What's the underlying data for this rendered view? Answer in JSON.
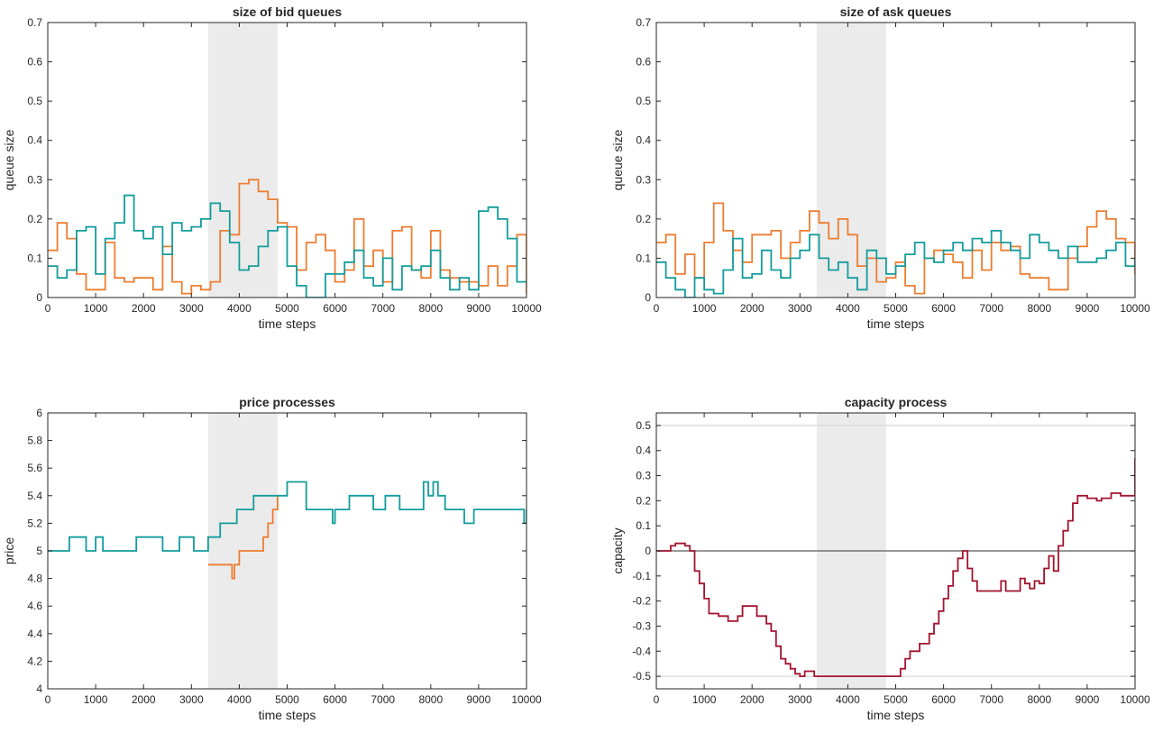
{
  "figure": {
    "colors": {
      "orange": "#ED7D31",
      "teal": "#139C9C",
      "darkred": "#A2142F",
      "shade": "#EBEBEB",
      "axis": "#262626",
      "zero_line": "#595959",
      "bound_line": "#D9D9D9"
    }
  },
  "chart_data": [
    {
      "id": "bid",
      "type": "line",
      "style": "stairs",
      "title": "size of bid queues",
      "xlabel": "time steps",
      "ylabel": "queue size",
      "xlim": [
        0,
        10000
      ],
      "ylim": [
        0,
        0.7
      ],
      "xticks": [
        "0",
        "1000",
        "2000",
        "3000",
        "4000",
        "5000",
        "6000",
        "7000",
        "8000",
        "9000",
        "10000"
      ],
      "yticks": [
        "0",
        "0.1",
        "0.2",
        "0.3",
        "0.4",
        "0.5",
        "0.6",
        "0.7"
      ],
      "grid": false,
      "shaded_region": [
        3350,
        4800
      ],
      "series": [
        {
          "color": "#ED7D31",
          "x": [
            0,
            200,
            400,
            600,
            800,
            1000,
            1200,
            1400,
            1600,
            1800,
            2000,
            2200,
            2400,
            2600,
            2800,
            3000,
            3200,
            3400,
            3600,
            3800,
            4000,
            4200,
            4400,
            4600,
            4800,
            5000,
            5200,
            5400,
            5600,
            5800,
            6000,
            6200,
            6400,
            6600,
            6800,
            7000,
            7200,
            7400,
            7600,
            7800,
            8000,
            8200,
            8400,
            8600,
            8800,
            9000,
            9200,
            9400,
            9600,
            9800,
            10000
          ],
          "y": [
            0.12,
            0.19,
            0.15,
            0.06,
            0.02,
            0.02,
            0.14,
            0.05,
            0.04,
            0.05,
            0.05,
            0.02,
            0.13,
            0.04,
            0.01,
            0.03,
            0.02,
            0.04,
            0.17,
            0.16,
            0.29,
            0.3,
            0.27,
            0.25,
            0.19,
            0.18,
            0.07,
            0.14,
            0.16,
            0.12,
            0.04,
            0.07,
            0.2,
            0.08,
            0.12,
            0.04,
            0.17,
            0.18,
            0.07,
            0.05,
            0.17,
            0.07,
            0.05,
            0.04,
            0.04,
            0.03,
            0.08,
            0.03,
            0.08,
            0.16,
            0.01
          ]
        },
        {
          "color": "#139C9C",
          "x": [
            0,
            200,
            400,
            600,
            800,
            1000,
            1200,
            1400,
            1600,
            1800,
            2000,
            2200,
            2400,
            2600,
            2800,
            3000,
            3200,
            3400,
            3600,
            3800,
            4000,
            4200,
            4400,
            4600,
            4800,
            5000,
            5200,
            5400,
            5600,
            5800,
            6000,
            6200,
            6400,
            6600,
            6800,
            7000,
            7200,
            7400,
            7600,
            7800,
            8000,
            8200,
            8400,
            8600,
            8800,
            9000,
            9200,
            9400,
            9600,
            9800,
            10000
          ],
          "y": [
            0.08,
            0.05,
            0.07,
            0.17,
            0.18,
            0.06,
            0.15,
            0.19,
            0.26,
            0.17,
            0.15,
            0.18,
            0.11,
            0.19,
            0.17,
            0.18,
            0.2,
            0.24,
            0.22,
            0.14,
            0.07,
            0.08,
            0.13,
            0.17,
            0.18,
            0.08,
            0.03,
            0.0,
            0.0,
            0.06,
            0.06,
            0.09,
            0.12,
            0.05,
            0.03,
            0.1,
            0.02,
            0.08,
            0.07,
            0.08,
            0.12,
            0.05,
            0.02,
            0.05,
            0.02,
            0.22,
            0.23,
            0.2,
            0.15,
            0.04,
            0.04
          ]
        }
      ]
    },
    {
      "id": "ask",
      "type": "line",
      "style": "stairs",
      "title": "size of ask queues",
      "xlabel": "time steps",
      "ylabel": "queue size",
      "xlim": [
        0,
        10000
      ],
      "ylim": [
        0,
        0.7
      ],
      "xticks": [
        "0",
        "1000",
        "2000",
        "3000",
        "4000",
        "5000",
        "6000",
        "7000",
        "8000",
        "9000",
        "10000"
      ],
      "yticks": [
        "0",
        "0.1",
        "0.2",
        "0.3",
        "0.4",
        "0.5",
        "0.6",
        "0.7"
      ],
      "grid": false,
      "shaded_region": [
        3350,
        4800
      ],
      "series": [
        {
          "color": "#ED7D31",
          "x": [
            0,
            200,
            400,
            600,
            800,
            1000,
            1200,
            1400,
            1600,
            1800,
            2000,
            2200,
            2400,
            2600,
            2800,
            3000,
            3200,
            3400,
            3600,
            3800,
            4000,
            4200,
            4400,
            4600,
            4800,
            5000,
            5200,
            5400,
            5600,
            5800,
            6000,
            6200,
            6400,
            6600,
            6800,
            7000,
            7200,
            7400,
            7600,
            7800,
            8000,
            8200,
            8400,
            8600,
            8800,
            9000,
            9200,
            9400,
            9600,
            9800,
            10000
          ],
          "y": [
            0.14,
            0.16,
            0.06,
            0.11,
            0.05,
            0.14,
            0.24,
            0.17,
            0.12,
            0.09,
            0.16,
            0.16,
            0.17,
            0.1,
            0.14,
            0.17,
            0.22,
            0.19,
            0.15,
            0.2,
            0.16,
            0.08,
            0.1,
            0.04,
            0.05,
            0.09,
            0.03,
            0.01,
            0.1,
            0.12,
            0.11,
            0.09,
            0.05,
            0.12,
            0.07,
            0.14,
            0.12,
            0.13,
            0.06,
            0.05,
            0.05,
            0.02,
            0.02,
            0.1,
            0.13,
            0.18,
            0.22,
            0.2,
            0.15,
            0.14,
            0.06
          ]
        },
        {
          "color": "#139C9C",
          "x": [
            0,
            200,
            400,
            600,
            800,
            1000,
            1200,
            1400,
            1600,
            1800,
            2000,
            2200,
            2400,
            2600,
            2800,
            3000,
            3200,
            3400,
            3600,
            3800,
            4000,
            4200,
            4400,
            4600,
            4800,
            5000,
            5200,
            5400,
            5600,
            5800,
            6000,
            6200,
            6400,
            6600,
            6800,
            7000,
            7200,
            7400,
            7600,
            7800,
            8000,
            8200,
            8400,
            8600,
            8800,
            9000,
            9200,
            9400,
            9600,
            9800,
            10000
          ],
          "y": [
            0.09,
            0.05,
            0.02,
            0.0,
            0.05,
            0.02,
            0.01,
            0.07,
            0.15,
            0.05,
            0.06,
            0.12,
            0.07,
            0.05,
            0.1,
            0.12,
            0.16,
            0.1,
            0.07,
            0.09,
            0.05,
            0.02,
            0.12,
            0.1,
            0.06,
            0.08,
            0.11,
            0.14,
            0.1,
            0.09,
            0.12,
            0.14,
            0.12,
            0.15,
            0.14,
            0.17,
            0.14,
            0.12,
            0.1,
            0.16,
            0.14,
            0.12,
            0.1,
            0.13,
            0.09,
            0.09,
            0.1,
            0.12,
            0.14,
            0.08,
            0.1
          ]
        }
      ]
    },
    {
      "id": "price",
      "type": "line",
      "style": "stairs",
      "title": "price processes",
      "xlabel": "time steps",
      "ylabel": "price",
      "xlim": [
        0,
        10000
      ],
      "ylim": [
        4,
        6
      ],
      "xticks": [
        "0",
        "1000",
        "2000",
        "3000",
        "4000",
        "5000",
        "6000",
        "7000",
        "8000",
        "9000",
        "10000"
      ],
      "yticks": [
        "4",
        "4.2",
        "4.4",
        "4.6",
        "4.8",
        "5",
        "5.2",
        "5.4",
        "5.6",
        "5.8",
        "6"
      ],
      "grid": false,
      "shaded_region": [
        3350,
        4800
      ],
      "series": [
        {
          "color": "#ED7D31",
          "x": [
            3350,
            3850,
            3900,
            4000,
            4500,
            4600,
            4700,
            4800
          ],
          "y": [
            4.9,
            4.8,
            4.9,
            5.0,
            5.1,
            5.2,
            5.3,
            5.4
          ]
        },
        {
          "color": "#139C9C",
          "x": [
            0,
            450,
            800,
            1000,
            1150,
            1850,
            2400,
            2750,
            3050,
            3350,
            3600,
            3950,
            4300,
            4800,
            5000,
            5400,
            5950,
            6000,
            6300,
            6800,
            7050,
            7350,
            7850,
            7950,
            8050,
            8150,
            8300,
            8700,
            8900,
            9100,
            9950,
            10000
          ],
          "y": [
            5.0,
            5.1,
            5.0,
            5.1,
            5.0,
            5.1,
            5.0,
            5.1,
            5.0,
            5.1,
            5.2,
            5.3,
            5.4,
            5.4,
            5.5,
            5.3,
            5.2,
            5.3,
            5.4,
            5.3,
            5.4,
            5.3,
            5.5,
            5.4,
            5.5,
            5.4,
            5.3,
            5.2,
            5.3,
            5.3,
            5.2,
            5.3
          ]
        }
      ]
    },
    {
      "id": "capacity",
      "type": "line",
      "style": "stairs",
      "title": "capacity process",
      "xlabel": "time steps",
      "ylabel": "capacity",
      "xlim": [
        0,
        10000
      ],
      "ylim": [
        -0.55,
        0.55
      ],
      "xticks": [
        "0",
        "1000",
        "2000",
        "3000",
        "4000",
        "5000",
        "6000",
        "7000",
        "8000",
        "9000",
        "10000"
      ],
      "yticks": [
        "-0.5",
        "-0.4",
        "-0.3",
        "-0.2",
        "-0.1",
        "0",
        "0.1",
        "0.2",
        "0.3",
        "0.4",
        "0.5"
      ],
      "grid": false,
      "shaded_region": [
        3350,
        4800
      ],
      "reference_lines": [
        {
          "y": 0,
          "color": "#595959"
        },
        {
          "y": 0.5,
          "color": "#D9D9D9"
        },
        {
          "y": -0.5,
          "color": "#D9D9D9"
        }
      ],
      "series": [
        {
          "color": "#A2142F",
          "x": [
            0,
            300,
            400,
            600,
            700,
            800,
            900,
            1000,
            1100,
            1300,
            1500,
            1700,
            1800,
            1900,
            2100,
            2300,
            2400,
            2500,
            2600,
            2700,
            2800,
            2900,
            3000,
            3100,
            3200,
            3300,
            3500,
            4000,
            4900,
            5100,
            5200,
            5300,
            5500,
            5700,
            5800,
            5900,
            6000,
            6100,
            6200,
            6300,
            6400,
            6500,
            6600,
            6700,
            6800,
            7000,
            7200,
            7300,
            7400,
            7600,
            7700,
            7800,
            7900,
            8000,
            8100,
            8200,
            8300,
            8400,
            8500,
            8600,
            8700,
            8800,
            9000,
            9200,
            9300,
            9500,
            9700,
            9900,
            10000
          ],
          "y": [
            0.0,
            0.02,
            0.03,
            0.02,
            0.0,
            -0.08,
            -0.13,
            -0.19,
            -0.25,
            -0.26,
            -0.28,
            -0.26,
            -0.22,
            -0.22,
            -0.26,
            -0.29,
            -0.32,
            -0.38,
            -0.43,
            -0.45,
            -0.47,
            -0.49,
            -0.5,
            -0.48,
            -0.48,
            -0.5,
            -0.5,
            -0.5,
            -0.5,
            -0.47,
            -0.43,
            -0.4,
            -0.37,
            -0.33,
            -0.29,
            -0.24,
            -0.19,
            -0.14,
            -0.08,
            -0.03,
            0.0,
            -0.07,
            -0.12,
            -0.16,
            -0.16,
            -0.16,
            -0.12,
            -0.16,
            -0.16,
            -0.11,
            -0.13,
            -0.15,
            -0.12,
            -0.13,
            -0.07,
            -0.02,
            -0.08,
            0.02,
            0.08,
            0.12,
            0.19,
            0.22,
            0.21,
            0.2,
            0.21,
            0.23,
            0.22,
            0.22,
            0.37
          ]
        }
      ]
    }
  ]
}
